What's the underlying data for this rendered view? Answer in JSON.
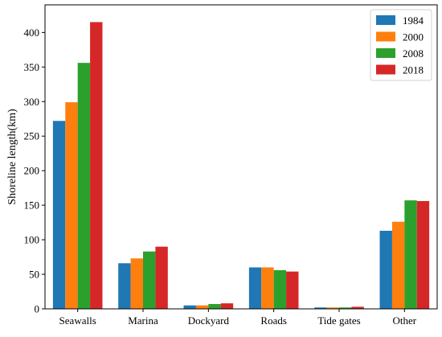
{
  "chart_data": {
    "type": "bar",
    "title": "",
    "xlabel": "",
    "ylabel": "Shoreline length(km)",
    "categories": [
      "Seawalls",
      "Marina",
      "Dockyard",
      "Roads",
      "Tide gates",
      "Other"
    ],
    "ylim": [
      0,
      440
    ],
    "yticks": [
      0,
      50,
      100,
      150,
      200,
      250,
      300,
      350,
      400
    ],
    "grid": false,
    "legend_position": "top-right",
    "series": [
      {
        "name": "1984",
        "color": "#1f77b4",
        "values": [
          272,
          66,
          5,
          60,
          2,
          113
        ]
      },
      {
        "name": "2000",
        "color": "#ff7f0e",
        "values": [
          299,
          73,
          5,
          60,
          2,
          126
        ]
      },
      {
        "name": "2008",
        "color": "#2ca02c",
        "values": [
          356,
          83,
          7,
          56,
          2,
          157
        ]
      },
      {
        "name": "2018",
        "color": "#d62728",
        "values": [
          415,
          90,
          8,
          54,
          3,
          156
        ]
      }
    ]
  }
}
